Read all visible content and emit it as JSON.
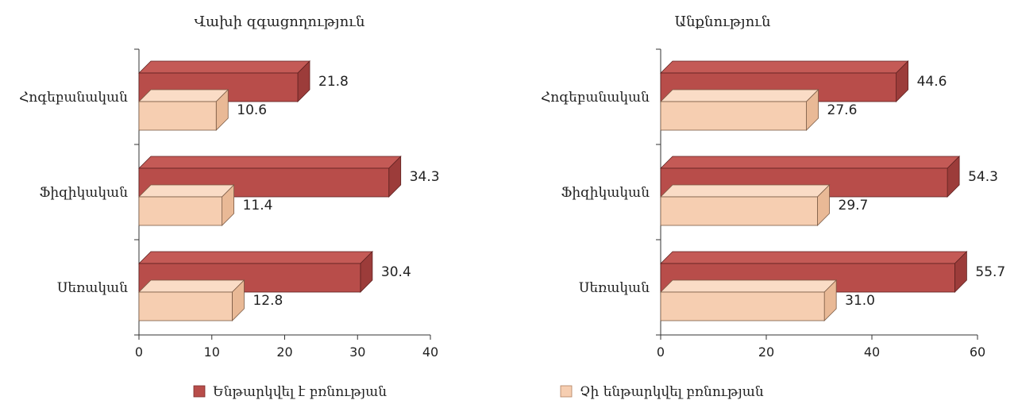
{
  "colors": {
    "dark_series": "#b84d4a",
    "dark_series_top": "#c45a56",
    "dark_series_side": "#9c3c3a",
    "light_series": "#f6ceb1",
    "light_series_top": "#fadcc6",
    "light_series_side": "#e9b996",
    "axis": "#333333"
  },
  "legend": {
    "items": [
      {
        "label": "Ենթարկվել է բռնության",
        "color": "#b84d4a"
      },
      {
        "label": "Չի ենթարկվել բռնության",
        "color": "#f6ceb1"
      }
    ]
  },
  "chart_data": [
    {
      "type": "bar",
      "orientation": "horizontal",
      "title": "Վախի զգացողություն",
      "categories": [
        "Հոգեբանական",
        "Ֆիզիկական",
        "Սեռական"
      ],
      "series": [
        {
          "name": "Ենթարկվել է բռնության",
          "values": [
            21.8,
            34.3,
            30.4
          ]
        },
        {
          "name": "Չի ենթարկվել բռնության",
          "values": [
            10.6,
            11.4,
            12.8
          ]
        }
      ],
      "value_labels": [
        [
          "21.8",
          "34.3",
          "30.4"
        ],
        [
          "10.6",
          "11.4",
          "12.8"
        ]
      ],
      "xlim": [
        0,
        40
      ],
      "xticks": [
        "0",
        "10",
        "20",
        "30",
        "40"
      ],
      "xlabel": "",
      "ylabel": ""
    },
    {
      "type": "bar",
      "orientation": "horizontal",
      "title": "Անքնություն",
      "categories": [
        "Հոգեբանական",
        "Ֆիզիկական",
        "Սեռական"
      ],
      "series": [
        {
          "name": "Ենթարկվել է բռնության",
          "values": [
            44.6,
            54.3,
            55.7
          ]
        },
        {
          "name": "Չի ենթարկվել բռնության",
          "values": [
            27.6,
            29.7,
            31.0
          ]
        }
      ],
      "value_labels": [
        [
          "44.6",
          "54.3",
          "55.7"
        ],
        [
          "27.6",
          "29.7",
          "31.0"
        ]
      ],
      "xlim": [
        0,
        60
      ],
      "xticks": [
        "0",
        "20",
        "40",
        "60"
      ],
      "xlabel": "",
      "ylabel": ""
    }
  ]
}
